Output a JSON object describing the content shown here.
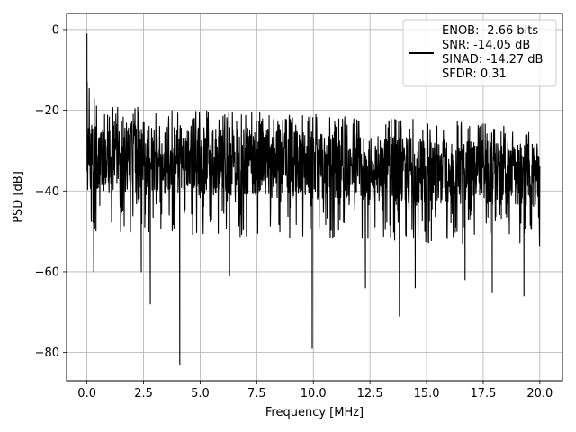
{
  "chart_data": {
    "type": "line",
    "title": "",
    "xlabel": "Frequency [MHz]",
    "ylabel": "PSD [dB]",
    "xlim": [
      -0.9,
      21.0
    ],
    "ylim": [
      -87,
      4
    ],
    "xticks": [
      0.0,
      2.5,
      5.0,
      7.5,
      10.0,
      12.5,
      15.0,
      17.5,
      20.0
    ],
    "xtick_labels": [
      "0.0",
      "2.5",
      "5.0",
      "7.5",
      "10.0",
      "12.5",
      "15.0",
      "17.5",
      "20.0"
    ],
    "yticks": [
      0,
      -20,
      -40,
      -60,
      -80
    ],
    "ytick_labels": [
      "0",
      "−20",
      "−40",
      "−60",
      "−80"
    ],
    "grid": true,
    "legend_position": "top-right",
    "series": [
      {
        "color": "#000000",
        "description": "dense noise-like PSD trace from 0 to 20 MHz",
        "x_range": [
          0.0,
          20.0
        ],
        "peak": {
          "x": 0.0,
          "y": -1
        },
        "upper_envelope": [
          {
            "x": 0.0,
            "y": -13
          },
          {
            "x": 0.5,
            "y": -19
          },
          {
            "x": 2.0,
            "y": -19
          },
          {
            "x": 5.0,
            "y": -20
          },
          {
            "x": 10.0,
            "y": -21
          },
          {
            "x": 15.0,
            "y": -22
          },
          {
            "x": 20.0,
            "y": -24
          }
        ],
        "body_band": [
          {
            "x": 0.0,
            "top": -22,
            "bottom": -40
          },
          {
            "x": 5.0,
            "top": -24,
            "bottom": -41
          },
          {
            "x": 10.0,
            "top": -25,
            "bottom": -42
          },
          {
            "x": 15.0,
            "top": -27,
            "bottom": -43
          },
          {
            "x": 20.0,
            "top": -28,
            "bottom": -44
          }
        ],
        "notches": [
          {
            "x": 0.3,
            "y": -60
          },
          {
            "x": 2.4,
            "y": -60
          },
          {
            "x": 2.8,
            "y": -68
          },
          {
            "x": 4.1,
            "y": -83
          },
          {
            "x": 6.3,
            "y": -61
          },
          {
            "x": 9.95,
            "y": -79
          },
          {
            "x": 12.3,
            "y": -64
          },
          {
            "x": 13.8,
            "y": -71
          },
          {
            "x": 14.5,
            "y": -64
          },
          {
            "x": 16.7,
            "y": -62
          },
          {
            "x": 17.9,
            "y": -65
          },
          {
            "x": 19.3,
            "y": -66
          }
        ]
      }
    ],
    "legend": {
      "lines": [
        "ENOB: -2.66 bits",
        "SNR: -14.05 dB",
        "SINAD: -14.27 dB",
        "SFDR: 0.31"
      ],
      "line_color": "#000000"
    }
  }
}
